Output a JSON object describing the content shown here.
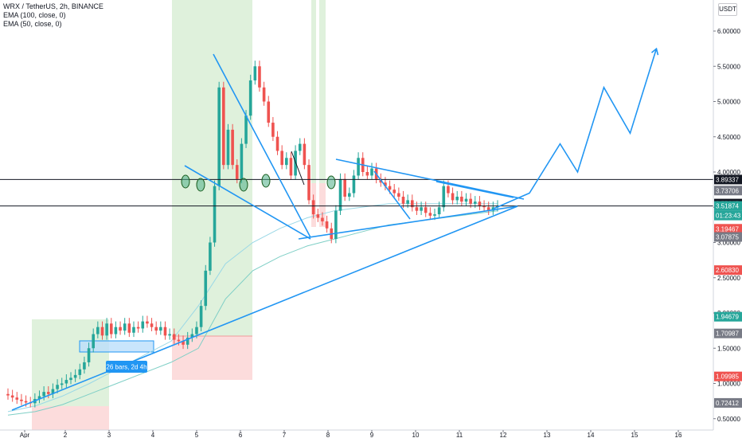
{
  "legend": {
    "title": "WRX / TetherUS, 2h, BINANCE",
    "ema100": "EMA (100, close, 0)",
    "ema50": "EMA (50, close, 0)"
  },
  "currency_button": "USDT",
  "measure_label": "26 bars, 2d 4h",
  "colors": {
    "up": "#26a69a",
    "down": "#ef5350",
    "trendline": "#2196f3",
    "ema100": "#7fcfc6",
    "ema50": "#9ad8e6",
    "profit_zone": "#d9eed6",
    "loss_zone": "#fbd6d6",
    "level_line": "#131722"
  },
  "chart_data": {
    "type": "candlestick",
    "x_ticks": [
      "Apr",
      "2",
      "3",
      "4",
      "5",
      "6",
      "7",
      "8",
      "9",
      "10",
      "11",
      "12",
      "13",
      "14",
      "15",
      "16"
    ],
    "y_ticks": [
      "6.00000",
      "5.50000",
      "5.00000",
      "4.50000",
      "4.00000",
      "3.50000",
      "3.00000",
      "2.50000",
      "2.00000",
      "1.50000",
      "1.00000",
      "0.50000"
    ],
    "ylim": [
      0.5,
      6.3
    ],
    "price_tags": [
      {
        "value": "3.89337",
        "color": "#131722"
      },
      {
        "value": "3.73706",
        "color": "#787b86"
      },
      {
        "value": "3.55247",
        "color": "#131722"
      },
      {
        "value": "3.51874",
        "color": "#26a69a"
      },
      {
        "value": "01:23:43",
        "color": "#26a69a"
      },
      {
        "value": "3.19467",
        "color": "#ef5350"
      },
      {
        "value": "3.07875",
        "color": "#787b86"
      },
      {
        "value": "2.60830",
        "color": "#ef5350"
      },
      {
        "value": "1.94679",
        "color": "#26a69a"
      },
      {
        "value": "1.70987",
        "color": "#787b86"
      },
      {
        "value": "1.09985",
        "color": "#ef5350"
      },
      {
        "value": "0.72412",
        "color": "#787b86"
      }
    ],
    "candles": [
      [
        0.85,
        0.83
      ],
      [
        0.83,
        0.8
      ],
      [
        0.8,
        0.77
      ],
      [
        0.77,
        0.75
      ],
      [
        0.75,
        0.73
      ],
      [
        0.73,
        0.72
      ],
      [
        0.72,
        0.78
      ],
      [
        0.78,
        0.82
      ],
      [
        0.82,
        0.88
      ],
      [
        0.88,
        0.85
      ],
      [
        0.85,
        0.92
      ],
      [
        0.92,
        0.98
      ],
      [
        0.98,
        1.0
      ],
      [
        1.0,
        1.05
      ],
      [
        1.05,
        1.08
      ],
      [
        1.08,
        1.12
      ],
      [
        1.12,
        1.2
      ],
      [
        1.2,
        1.3
      ],
      [
        1.3,
        1.5
      ],
      [
        1.5,
        1.7
      ],
      [
        1.7,
        1.8
      ],
      [
        1.8,
        1.68
      ],
      [
        1.68,
        1.85
      ],
      [
        1.85,
        1.7
      ],
      [
        1.7,
        1.8
      ],
      [
        1.8,
        1.75
      ],
      [
        1.75,
        1.85
      ],
      [
        1.85,
        1.72
      ],
      [
        1.72,
        1.8
      ],
      [
        1.8,
        1.78
      ],
      [
        1.78,
        1.88
      ],
      [
        1.88,
        1.85
      ],
      [
        1.85,
        1.8
      ],
      [
        1.8,
        1.75
      ],
      [
        1.75,
        1.8
      ],
      [
        1.8,
        1.68
      ],
      [
        1.68,
        1.7
      ],
      [
        1.7,
        1.62
      ],
      [
        1.62,
        1.6
      ],
      [
        1.6,
        1.55
      ],
      [
        1.55,
        1.65
      ],
      [
        1.65,
        1.7
      ],
      [
        1.7,
        1.8
      ],
      [
        1.8,
        2.1
      ],
      [
        2.1,
        2.6
      ],
      [
        2.6,
        3.0
      ],
      [
        3.0,
        3.8
      ],
      [
        3.8,
        5.2
      ],
      [
        5.2,
        4.1
      ],
      [
        4.1,
        4.6
      ],
      [
        4.6,
        4.1
      ],
      [
        4.1,
        3.9
      ],
      [
        3.9,
        4.4
      ],
      [
        4.4,
        4.8
      ],
      [
        4.8,
        5.3
      ],
      [
        5.3,
        5.5
      ],
      [
        5.5,
        5.2
      ],
      [
        5.2,
        5.0
      ],
      [
        5.0,
        4.7
      ],
      [
        4.7,
        4.5
      ],
      [
        4.5,
        4.3
      ],
      [
        4.3,
        4.1
      ],
      [
        4.1,
        4.2
      ],
      [
        4.2,
        3.95
      ],
      [
        3.95,
        4.3
      ],
      [
        4.3,
        4.4
      ],
      [
        4.4,
        4.1
      ],
      [
        4.1,
        3.6
      ],
      [
        3.6,
        3.4
      ],
      [
        3.4,
        3.35
      ],
      [
        3.35,
        3.3
      ],
      [
        3.3,
        3.2
      ],
      [
        3.2,
        3.05
      ],
      [
        3.05,
        3.45
      ],
      [
        3.45,
        3.9
      ],
      [
        3.9,
        3.65
      ],
      [
        3.65,
        3.7
      ],
      [
        3.7,
        3.95
      ],
      [
        3.95,
        4.2
      ],
      [
        4.2,
        4.0
      ],
      [
        4.0,
        3.95
      ],
      [
        3.95,
        4.05
      ],
      [
        4.05,
        3.9
      ],
      [
        3.9,
        3.85
      ],
      [
        3.85,
        3.8
      ],
      [
        3.8,
        3.75
      ],
      [
        3.75,
        3.7
      ],
      [
        3.7,
        3.65
      ],
      [
        3.65,
        3.55
      ],
      [
        3.55,
        3.6
      ],
      [
        3.6,
        3.5
      ],
      [
        3.5,
        3.45
      ],
      [
        3.45,
        3.5
      ],
      [
        3.5,
        3.42
      ],
      [
        3.42,
        3.38
      ],
      [
        3.38,
        3.4
      ],
      [
        3.4,
        3.5
      ],
      [
        3.5,
        3.8
      ],
      [
        3.8,
        3.7
      ],
      [
        3.7,
        3.6
      ],
      [
        3.6,
        3.65
      ],
      [
        3.65,
        3.58
      ],
      [
        3.58,
        3.62
      ],
      [
        3.62,
        3.55
      ],
      [
        3.55,
        3.58
      ],
      [
        3.58,
        3.52
      ],
      [
        3.52,
        3.5
      ],
      [
        3.5,
        3.45
      ],
      [
        3.45,
        3.5
      ],
      [
        3.5,
        3.52
      ]
    ],
    "ema100": [
      0.55,
      0.6,
      0.7,
      0.85,
      1.0,
      1.15,
      1.3,
      1.5,
      2.2,
      2.6,
      2.8,
      2.95,
      3.05,
      3.15,
      3.25,
      3.3,
      3.35,
      3.4,
      3.45
    ],
    "ema50": [
      0.6,
      0.68,
      0.82,
      1.0,
      1.2,
      1.4,
      1.6,
      2.1,
      2.7,
      3.0,
      3.2,
      3.35,
      3.45,
      3.5,
      3.55,
      3.55,
      3.55,
      3.55,
      3.55
    ],
    "forecast": [
      [
        12.6,
        3.7
      ],
      [
        13.3,
        4.4
      ],
      [
        13.7,
        4.0
      ],
      [
        14.3,
        5.2
      ],
      [
        14.9,
        4.55
      ],
      [
        15.5,
        5.75
      ]
    ]
  }
}
